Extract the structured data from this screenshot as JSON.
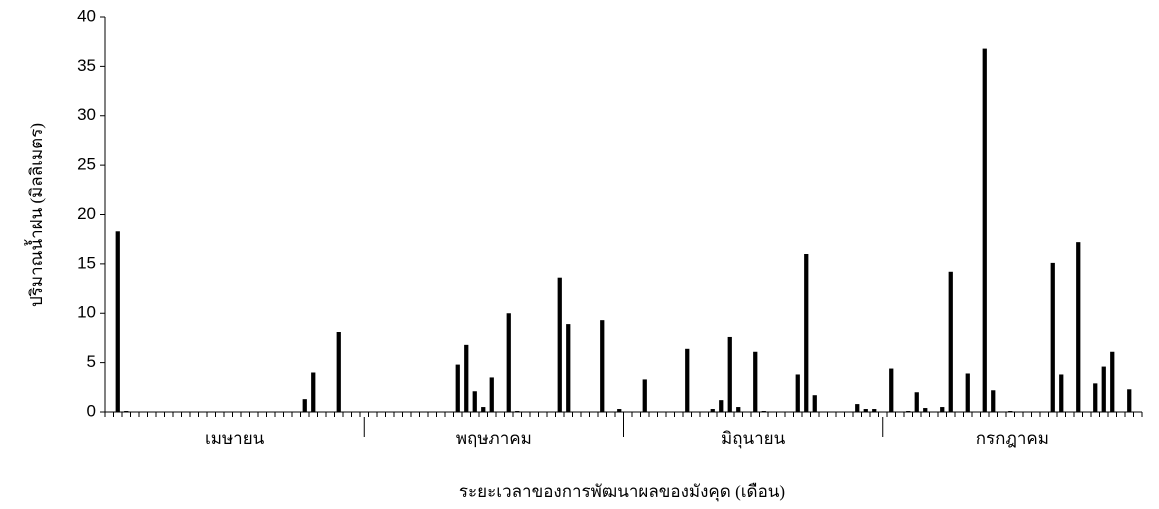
{
  "chart_data": {
    "type": "bar",
    "y_label": "ปริมาณน้ำฝน (มิลลิเมตร)",
    "x_label": "ระยะเวลาของการพัฒนาผลของมังคุด (เดือน)",
    "month_labels": [
      "เมษายน",
      "พฤษภาคม",
      "มิถุนายน",
      "กรกฎาคม"
    ],
    "categories": [
      null,
      null,
      null,
      null,
      null,
      null,
      null,
      null,
      null,
      null,
      null,
      null,
      null,
      null,
      null,
      null,
      null,
      null,
      null,
      null,
      null,
      null,
      null,
      null,
      null,
      null,
      null,
      null,
      null,
      null,
      null,
      null,
      null,
      null,
      null,
      null,
      null,
      null,
      null,
      null,
      null,
      null,
      null,
      null,
      null,
      null,
      null,
      null,
      null,
      null,
      null,
      null,
      null,
      null,
      null,
      null,
      null,
      null,
      null,
      null,
      null,
      null,
      null,
      null,
      null,
      null,
      null,
      null,
      null,
      null,
      null,
      null,
      null,
      null,
      null,
      null,
      null,
      null,
      null,
      null,
      null,
      null,
      null,
      null,
      null,
      null,
      null,
      null,
      null,
      null,
      null,
      null,
      null,
      null,
      null,
      null,
      null,
      null,
      null,
      null,
      null,
      null,
      null,
      null,
      null,
      null,
      null,
      null,
      null,
      null,
      null,
      null,
      null,
      null,
      null,
      null,
      null,
      null,
      null,
      null,
      null,
      null
    ],
    "values": [
      0,
      18.3,
      0.1,
      0,
      0,
      0,
      0,
      0,
      0,
      0,
      0,
      0,
      0,
      0,
      0,
      0,
      0,
      0,
      0,
      0,
      0,
      0,
      0,
      1.3,
      4.0,
      0,
      0,
      8.1,
      0,
      0,
      0,
      0,
      0,
      0,
      0,
      0,
      0,
      0,
      0,
      0,
      0,
      4.8,
      6.8,
      2.1,
      0.5,
      3.5,
      0,
      10,
      0.1,
      0,
      0,
      0,
      0,
      13.6,
      8.9,
      0,
      0,
      0,
      9.3,
      0,
      0.3,
      0,
      0,
      3.3,
      0,
      0,
      0,
      0,
      6.4,
      0,
      0,
      0.3,
      1.2,
      7.6,
      0.5,
      0,
      6.1,
      0.1,
      0,
      0,
      0,
      3.8,
      16,
      1.7,
      0,
      0,
      0,
      0,
      0.8,
      0.3,
      0.3,
      0,
      4.4,
      0,
      0.1,
      2,
      0.4,
      0,
      0.5,
      14.2,
      0,
      3.9,
      0,
      36.8,
      2.2,
      0,
      0.1,
      0,
      0,
      0,
      0,
      15.1,
      3.8,
      0,
      17.2,
      0,
      2.9,
      4.6,
      6.1,
      0,
      2.3,
      0
    ],
    "color": "#000000",
    "ylim": [
      0,
      40
    ],
    "yticks": [
      0,
      5,
      10,
      15,
      20,
      25,
      30,
      35,
      40
    ],
    "grid": false
  }
}
